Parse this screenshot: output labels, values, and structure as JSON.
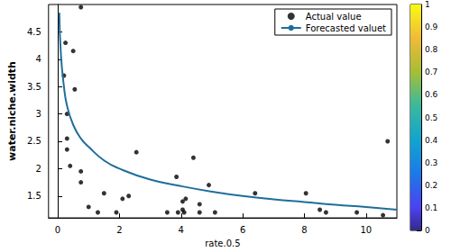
{
  "chart_data": {
    "type": "scatter",
    "x_label": "rate.0.5",
    "y_label": "water.niche.width",
    "xlim": [
      -0.3,
      11
    ],
    "xticks": [
      0,
      2,
      4,
      6,
      8,
      10
    ],
    "ylim": [
      1.1,
      5.0
    ],
    "yticks": [
      1.5,
      2,
      2.5,
      3,
      3.5,
      4,
      4.5
    ],
    "grid": false,
    "legend": "upper right",
    "series": [
      {
        "name": "Actual value",
        "type": "scatter",
        "marker": "circle",
        "color": "#000000",
        "x": [
          0.2,
          0.25,
          0.3,
          0.3,
          0.3,
          0.4,
          0.5,
          0.55,
          0.75,
          0.75,
          0.75,
          1.0,
          1.3,
          1.5,
          1.9,
          2.1,
          2.3,
          2.55,
          3.55,
          3.85,
          3.9,
          4.05,
          4.05,
          4.15,
          4.1,
          4.4,
          4.6,
          4.6,
          4.9,
          5.1,
          6.4,
          8.05,
          8.5,
          8.7,
          9.7,
          10.55,
          10.7
        ],
        "values": [
          3.7,
          4.3,
          3.0,
          2.55,
          2.35,
          2.05,
          4.15,
          3.45,
          4.95,
          1.95,
          1.75,
          1.3,
          1.2,
          1.55,
          1.2,
          1.45,
          1.5,
          2.3,
          1.2,
          1.85,
          1.2,
          1.4,
          1.25,
          1.45,
          1.2,
          2.2,
          1.35,
          1.2,
          1.7,
          1.2,
          1.55,
          1.55,
          1.25,
          1.2,
          1.2,
          1.15,
          2.5
        ]
      },
      {
        "name": "Forecasted valuet",
        "type": "line",
        "line_style": "solid",
        "color": "#1f6e9c",
        "x": [
          0.05,
          0.1,
          0.2,
          0.3,
          0.5,
          0.75,
          1,
          1.5,
          2,
          3,
          4,
          5,
          6,
          7,
          8,
          9,
          10,
          11
        ],
        "values": [
          4.85,
          4.1,
          3.5,
          3.15,
          2.8,
          2.55,
          2.4,
          2.15,
          2.0,
          1.8,
          1.68,
          1.58,
          1.5,
          1.44,
          1.39,
          1.34,
          1.3,
          1.25
        ]
      }
    ],
    "colorbar": {
      "range": [
        0,
        1
      ],
      "ticks": [
        0,
        0.1,
        0.2,
        0.3,
        0.4,
        0.5,
        0.6,
        0.7,
        0.8,
        0.9,
        1
      ]
    }
  }
}
